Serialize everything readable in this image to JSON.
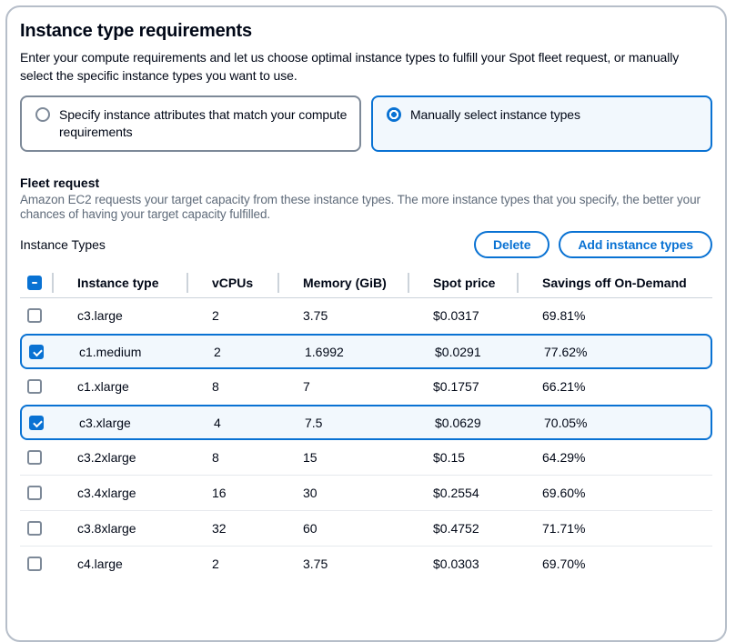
{
  "panel": {
    "title": "Instance type requirements",
    "description": "Enter your compute requirements and let us choose optimal instance types to fulfill your Spot fleet request, or manually select the specific instance types you want to use.",
    "options": [
      {
        "label": "Specify instance attributes that match your compute requirements",
        "selected": false
      },
      {
        "label": "Manually select instance types",
        "selected": true
      }
    ]
  },
  "fleet_request": {
    "title": "Fleet request",
    "description": "Amazon EC2 requests your target capacity from these instance types. The more instance types that you specify, the better your chances of having your target capacity fulfilled.",
    "table_label": "Instance Types",
    "buttons": {
      "delete": "Delete",
      "add": "Add instance types"
    }
  },
  "table": {
    "header_checkbox_state": "indeterminate",
    "columns": [
      "Instance type",
      "vCPUs",
      "Memory (GiB)",
      "Spot price",
      "Savings off On-Demand"
    ],
    "rows": [
      {
        "checked": false,
        "instance_type": "c3.large",
        "vcpus": "2",
        "memory": "3.75",
        "spot_price": "$0.0317",
        "savings": "69.81%"
      },
      {
        "checked": true,
        "instance_type": "c1.medium",
        "vcpus": "2",
        "memory": "1.6992",
        "spot_price": "$0.0291",
        "savings": "77.62%"
      },
      {
        "checked": false,
        "instance_type": "c1.xlarge",
        "vcpus": "8",
        "memory": "7",
        "spot_price": "$0.1757",
        "savings": "66.21%"
      },
      {
        "checked": true,
        "instance_type": "c3.xlarge",
        "vcpus": "4",
        "memory": "7.5",
        "spot_price": "$0.0629",
        "savings": "70.05%"
      },
      {
        "checked": false,
        "instance_type": "c3.2xlarge",
        "vcpus": "8",
        "memory": "15",
        "spot_price": "$0.15",
        "savings": "64.29%"
      },
      {
        "checked": false,
        "instance_type": "c3.4xlarge",
        "vcpus": "16",
        "memory": "30",
        "spot_price": "$0.2554",
        "savings": "69.60%"
      },
      {
        "checked": false,
        "instance_type": "c3.8xlarge",
        "vcpus": "32",
        "memory": "60",
        "spot_price": "$0.4752",
        "savings": "71.71%"
      },
      {
        "checked": false,
        "instance_type": "c4.large",
        "vcpus": "2",
        "memory": "3.75",
        "spot_price": "$0.0303",
        "savings": "69.70%"
      }
    ]
  },
  "colors": {
    "accent": "#0972d3",
    "selected_bg": "#f2f8fd",
    "border_gray": "#7d8998",
    "container_border": "#b6bec9",
    "muted_text": "#5f6b7a"
  },
  "icons": {
    "radio_selected": "radio-selected-icon",
    "radio_unselected": "radio-unselected-icon",
    "checkbox_indeterminate": "checkbox-indeterminate-icon",
    "checkbox_checked": "checkbox-checked-icon"
  }
}
